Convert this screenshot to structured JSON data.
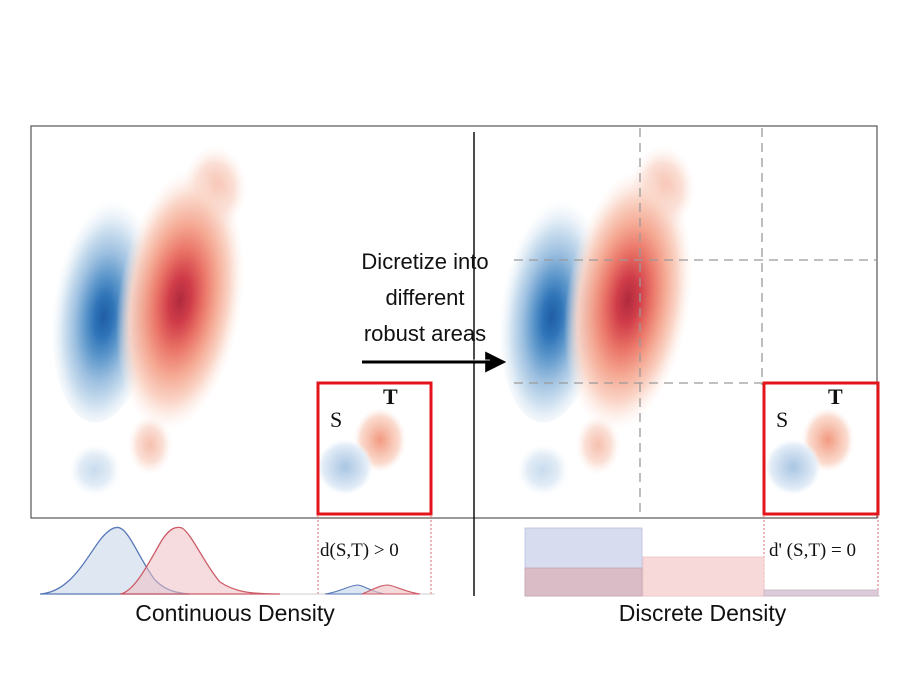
{
  "center_caption": {
    "line1": "Dicretize into",
    "line2": "different",
    "line3": "robust areas"
  },
  "left_panel": {
    "inset_source": "S",
    "inset_target": "T",
    "distance_text": "d(S,T) > 0",
    "caption": "Continuous Density"
  },
  "right_panel": {
    "inset_source": "S",
    "inset_target": "T",
    "distance_text": "d' (S,T) = 0",
    "caption": "Discrete Density"
  },
  "colors": {
    "source_blue": "#2f6fb3",
    "target_red": "#c8253a",
    "highlight_box": "#e3141b"
  }
}
